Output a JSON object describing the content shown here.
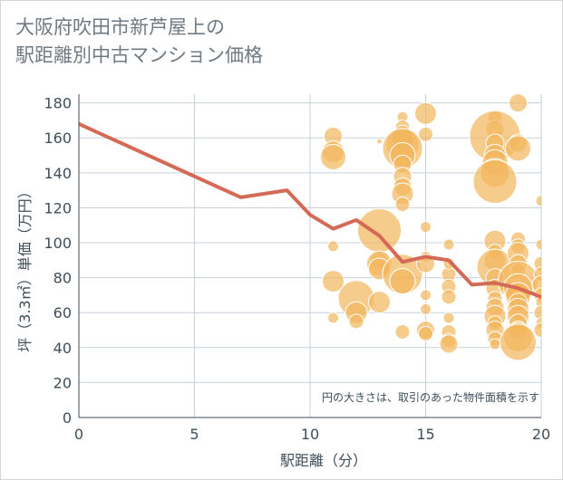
{
  "title": {
    "line1": "大阪府吹田市新芦屋上の",
    "line2": "駅距離別中古マンション価格"
  },
  "note": "円の大きさは、取引のあった物件面積を示す",
  "colors": {
    "bubble": "#f2b65c",
    "bubble_stroke": "#ffffff",
    "line": "#d46a55",
    "grid": "#c5d1dc",
    "axis": "#3e4e58"
  },
  "chart_data": {
    "type": "scatter",
    "xlabel": "駅距離（分）",
    "ylabel": "坪（3.3㎡）単価（万円）",
    "xlim": [
      0,
      20
    ],
    "ylim": [
      0,
      185
    ],
    "xticks": [
      0,
      5,
      10,
      15,
      20
    ],
    "yticks": [
      0,
      20,
      40,
      60,
      80,
      100,
      120,
      140,
      160,
      180
    ],
    "grid": true,
    "line": {
      "x": [
        0,
        1,
        2,
        3,
        4,
        5,
        6,
        7,
        8,
        9,
        10,
        11,
        12,
        13,
        14,
        15,
        16,
        17,
        18,
        19,
        20
      ],
      "y": [
        168,
        162,
        156,
        150,
        144,
        138,
        132,
        126,
        128,
        130,
        116,
        108,
        113,
        104,
        89,
        92,
        90,
        76,
        77,
        74,
        69
      ]
    },
    "bubbles": [
      {
        "x": 11,
        "y": 161,
        "s": 10
      },
      {
        "x": 11,
        "y": 152,
        "s": 12
      },
      {
        "x": 11,
        "y": 149,
        "s": 14
      },
      {
        "x": 11,
        "y": 98,
        "s": 6
      },
      {
        "x": 11,
        "y": 78,
        "s": 12
      },
      {
        "x": 11,
        "y": 57,
        "s": 6
      },
      {
        "x": 12,
        "y": 68,
        "s": 20
      },
      {
        "x": 12,
        "y": 60,
        "s": 12
      },
      {
        "x": 12,
        "y": 55,
        "s": 8
      },
      {
        "x": 13,
        "y": 107,
        "s": 24
      },
      {
        "x": 13,
        "y": 90,
        "s": 10
      },
      {
        "x": 13,
        "y": 88,
        "s": 14
      },
      {
        "x": 13,
        "y": 85,
        "s": 12
      },
      {
        "x": 13,
        "y": 66,
        "s": 12
      },
      {
        "x": 13,
        "y": 158,
        "s": 3
      },
      {
        "x": 14,
        "y": 172,
        "s": 6
      },
      {
        "x": 14,
        "y": 166,
        "s": 8
      },
      {
        "x": 14,
        "y": 162,
        "s": 10
      },
      {
        "x": 14,
        "y": 159,
        "s": 12
      },
      {
        "x": 14,
        "y": 156,
        "s": 18
      },
      {
        "x": 14,
        "y": 154,
        "s": 22
      },
      {
        "x": 14,
        "y": 150,
        "s": 14
      },
      {
        "x": 14,
        "y": 145,
        "s": 10
      },
      {
        "x": 14,
        "y": 138,
        "s": 10
      },
      {
        "x": 14,
        "y": 132,
        "s": 10
      },
      {
        "x": 14,
        "y": 128,
        "s": 12
      },
      {
        "x": 14,
        "y": 122,
        "s": 8
      },
      {
        "x": 14,
        "y": 82,
        "s": 22
      },
      {
        "x": 14,
        "y": 78,
        "s": 14
      },
      {
        "x": 14,
        "y": 49,
        "s": 8
      },
      {
        "x": 15,
        "y": 174,
        "s": 12
      },
      {
        "x": 15,
        "y": 162,
        "s": 8
      },
      {
        "x": 15,
        "y": 109,
        "s": 6
      },
      {
        "x": 15,
        "y": 92,
        "s": 6
      },
      {
        "x": 15,
        "y": 88,
        "s": 10
      },
      {
        "x": 15,
        "y": 70,
        "s": 6
      },
      {
        "x": 15,
        "y": 62,
        "s": 6
      },
      {
        "x": 15,
        "y": 50,
        "s": 10
      },
      {
        "x": 15,
        "y": 48,
        "s": 8
      },
      {
        "x": 16,
        "y": 99,
        "s": 6
      },
      {
        "x": 16,
        "y": 82,
        "s": 8
      },
      {
        "x": 16,
        "y": 75,
        "s": 8
      },
      {
        "x": 16,
        "y": 69,
        "s": 8
      },
      {
        "x": 16,
        "y": 57,
        "s": 6
      },
      {
        "x": 16,
        "y": 49,
        "s": 8
      },
      {
        "x": 16,
        "y": 44,
        "s": 8
      },
      {
        "x": 16,
        "y": 42,
        "s": 10
      },
      {
        "x": 16,
        "y": 88,
        "s": 6
      },
      {
        "x": 18,
        "y": 172,
        "s": 8
      },
      {
        "x": 18,
        "y": 165,
        "s": 10
      },
      {
        "x": 18,
        "y": 161,
        "s": 28
      },
      {
        "x": 18,
        "y": 157,
        "s": 10
      },
      {
        "x": 18,
        "y": 150,
        "s": 12
      },
      {
        "x": 18,
        "y": 146,
        "s": 14
      },
      {
        "x": 18,
        "y": 140,
        "s": 16
      },
      {
        "x": 18,
        "y": 135,
        "s": 24
      },
      {
        "x": 18,
        "y": 101,
        "s": 12
      },
      {
        "x": 18,
        "y": 95,
        "s": 8
      },
      {
        "x": 18,
        "y": 90,
        "s": 12
      },
      {
        "x": 18,
        "y": 86,
        "s": 20
      },
      {
        "x": 18,
        "y": 80,
        "s": 10
      },
      {
        "x": 18,
        "y": 74,
        "s": 10
      },
      {
        "x": 18,
        "y": 68,
        "s": 8
      },
      {
        "x": 18,
        "y": 63,
        "s": 10
      },
      {
        "x": 18,
        "y": 58,
        "s": 12
      },
      {
        "x": 18,
        "y": 54,
        "s": 8
      },
      {
        "x": 18,
        "y": 50,
        "s": 10
      },
      {
        "x": 18,
        "y": 45,
        "s": 8
      },
      {
        "x": 18,
        "y": 42,
        "s": 6
      },
      {
        "x": 19,
        "y": 180,
        "s": 10
      },
      {
        "x": 19,
        "y": 157,
        "s": 10
      },
      {
        "x": 19,
        "y": 154,
        "s": 14
      },
      {
        "x": 19,
        "y": 102,
        "s": 8
      },
      {
        "x": 19,
        "y": 98,
        "s": 8
      },
      {
        "x": 19,
        "y": 94,
        "s": 12
      },
      {
        "x": 19,
        "y": 88,
        "s": 10
      },
      {
        "x": 19,
        "y": 84,
        "s": 8
      },
      {
        "x": 19,
        "y": 78,
        "s": 22
      },
      {
        "x": 19,
        "y": 74,
        "s": 16
      },
      {
        "x": 19,
        "y": 70,
        "s": 14
      },
      {
        "x": 19,
        "y": 66,
        "s": 10
      },
      {
        "x": 19,
        "y": 62,
        "s": 12
      },
      {
        "x": 19,
        "y": 58,
        "s": 12
      },
      {
        "x": 19,
        "y": 54,
        "s": 10
      },
      {
        "x": 19,
        "y": 50,
        "s": 10
      },
      {
        "x": 19,
        "y": 46,
        "s": 16
      },
      {
        "x": 19,
        "y": 43,
        "s": 20
      },
      {
        "x": 20,
        "y": 124,
        "s": 6
      },
      {
        "x": 20,
        "y": 99,
        "s": 6
      },
      {
        "x": 20,
        "y": 88,
        "s": 8
      },
      {
        "x": 20,
        "y": 82,
        "s": 8
      },
      {
        "x": 20,
        "y": 76,
        "s": 10
      },
      {
        "x": 20,
        "y": 70,
        "s": 8
      },
      {
        "x": 20,
        "y": 66,
        "s": 6
      },
      {
        "x": 20,
        "y": 60,
        "s": 8
      },
      {
        "x": 20,
        "y": 54,
        "s": 6
      },
      {
        "x": 20,
        "y": 50,
        "s": 8
      }
    ]
  }
}
